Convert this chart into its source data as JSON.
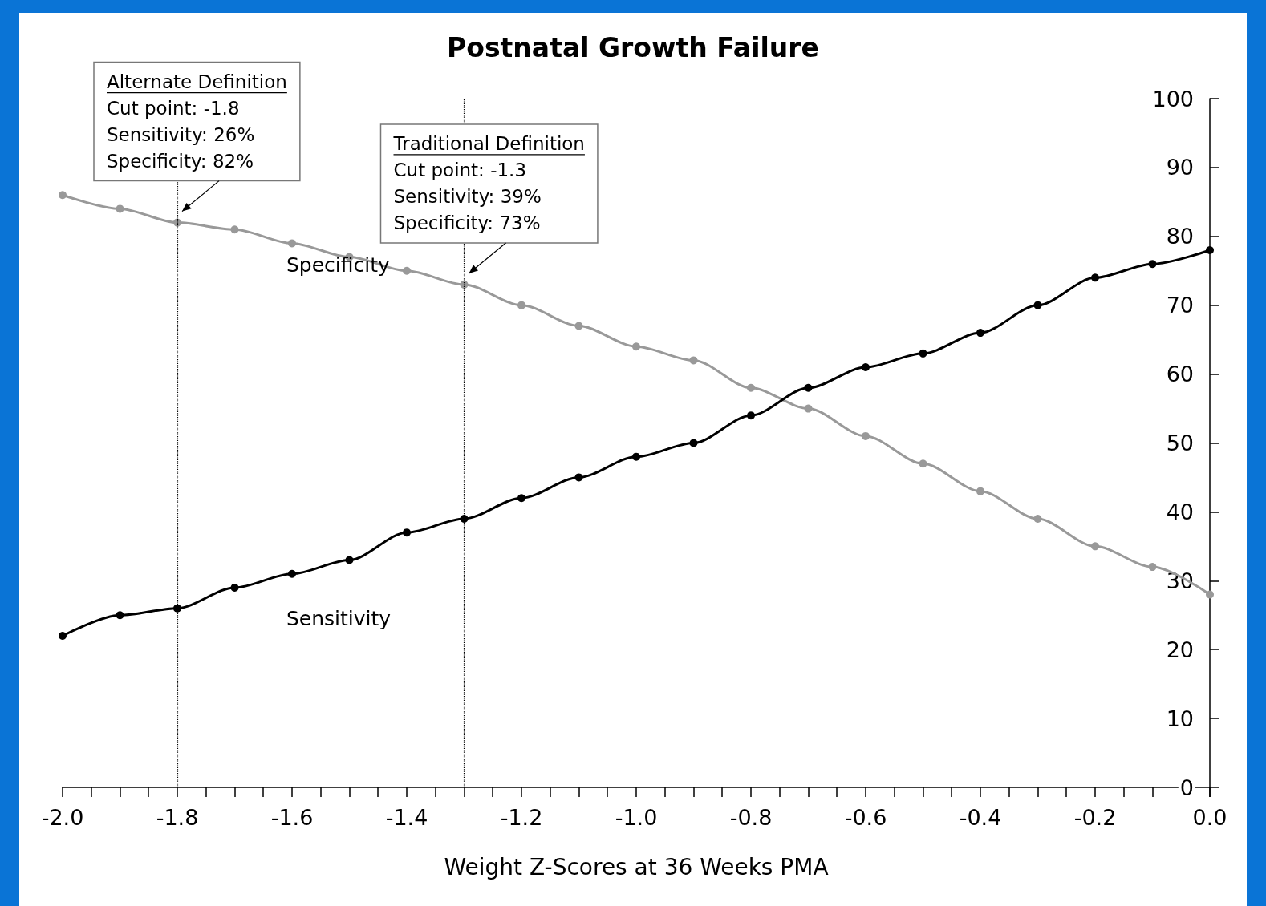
{
  "chart_data": {
    "type": "line",
    "title": "Postnatal Growth Failure",
    "xlabel": "Weight Z-Scores at 36 Weeks PMA",
    "x": [
      -2.0,
      -1.9,
      -1.8,
      -1.7,
      -1.6,
      -1.5,
      -1.4,
      -1.3,
      -1.2,
      -1.1,
      -1.0,
      -0.9,
      -0.8,
      -0.7,
      -0.6,
      -0.5,
      -0.4,
      -0.3,
      -0.2,
      -0.1,
      0.0
    ],
    "series": [
      {
        "name": "Specificity",
        "color": "#999999",
        "values": [
          86,
          84,
          82,
          81,
          79,
          77,
          75,
          73,
          70,
          67,
          64,
          62,
          58,
          55,
          51,
          47,
          43,
          39,
          35,
          32,
          28
        ]
      },
      {
        "name": "Sensitivity",
        "color": "#000000",
        "values": [
          22,
          25,
          26,
          29,
          31,
          33,
          37,
          39,
          42,
          45,
          48,
          50,
          54,
          58,
          61,
          63,
          66,
          70,
          74,
          76,
          78
        ]
      }
    ],
    "xlim": [
      -2.0,
      0.0
    ],
    "xticks": [
      {
        "value": -2.0,
        "label": "-2.0"
      },
      {
        "value": -1.95,
        "label": null
      },
      {
        "value": -1.9,
        "label": null
      },
      {
        "value": -1.85,
        "label": null
      },
      {
        "value": -1.8,
        "label": "-1.8"
      },
      {
        "value": -1.75,
        "label": null
      },
      {
        "value": -1.7,
        "label": null
      },
      {
        "value": -1.65,
        "label": null
      },
      {
        "value": -1.6,
        "label": "-1.6"
      },
      {
        "value": -1.55,
        "label": null
      },
      {
        "value": -1.5,
        "label": null
      },
      {
        "value": -1.45,
        "label": null
      },
      {
        "value": -1.4,
        "label": "-1.4"
      },
      {
        "value": -1.35,
        "label": null
      },
      {
        "value": -1.3,
        "label": null
      },
      {
        "value": -1.25,
        "label": null
      },
      {
        "value": -1.2,
        "label": "-1.2"
      },
      {
        "value": -1.15,
        "label": null
      },
      {
        "value": -1.1,
        "label": null
      },
      {
        "value": -1.05,
        "label": null
      },
      {
        "value": -1.0,
        "label": "-1.0"
      },
      {
        "value": -0.95,
        "label": null
      },
      {
        "value": -0.9,
        "label": null
      },
      {
        "value": -0.85,
        "label": null
      },
      {
        "value": -0.8,
        "label": "-0.8"
      },
      {
        "value": -0.75,
        "label": null
      },
      {
        "value": -0.7,
        "label": null
      },
      {
        "value": -0.65,
        "label": null
      },
      {
        "value": -0.6,
        "label": "-0.6"
      },
      {
        "value": -0.55,
        "label": null
      },
      {
        "value": -0.5,
        "label": null
      },
      {
        "value": -0.45,
        "label": null
      },
      {
        "value": -0.4,
        "label": "-0.4"
      },
      {
        "value": -0.35,
        "label": null
      },
      {
        "value": -0.3,
        "label": null
      },
      {
        "value": -0.25,
        "label": null
      },
      {
        "value": -0.2,
        "label": "-0.2"
      },
      {
        "value": -0.15,
        "label": null
      },
      {
        "value": -0.1,
        "label": null
      },
      {
        "value": -0.05,
        "label": null
      },
      {
        "value": 0.0,
        "label": "0.0"
      }
    ],
    "ylim": [
      0,
      100
    ],
    "yticks": [
      0,
      10,
      20,
      30,
      40,
      50,
      60,
      70,
      80,
      90,
      100
    ],
    "grid": false,
    "legend": false,
    "marker": "circle",
    "line_style": "solid",
    "ref_lines": [
      {
        "axis": "x",
        "value": -1.8,
        "line_style": "dotted",
        "color": "#000000"
      },
      {
        "axis": "x",
        "value": -1.3,
        "line_style": "dotted",
        "color": "#000000"
      }
    ],
    "annotations": [
      {
        "text": "Alternate Definition\nCut point: -1.8\nSensitivity: 26%\nSpecificity: 82%",
        "x": -1.8,
        "y": 82
      },
      {
        "text": "Traditional Definition\nCut point: -1.3\nSensitivity: 39%\nSpecificity: 73%",
        "x": -1.3,
        "y": 73
      }
    ]
  }
}
